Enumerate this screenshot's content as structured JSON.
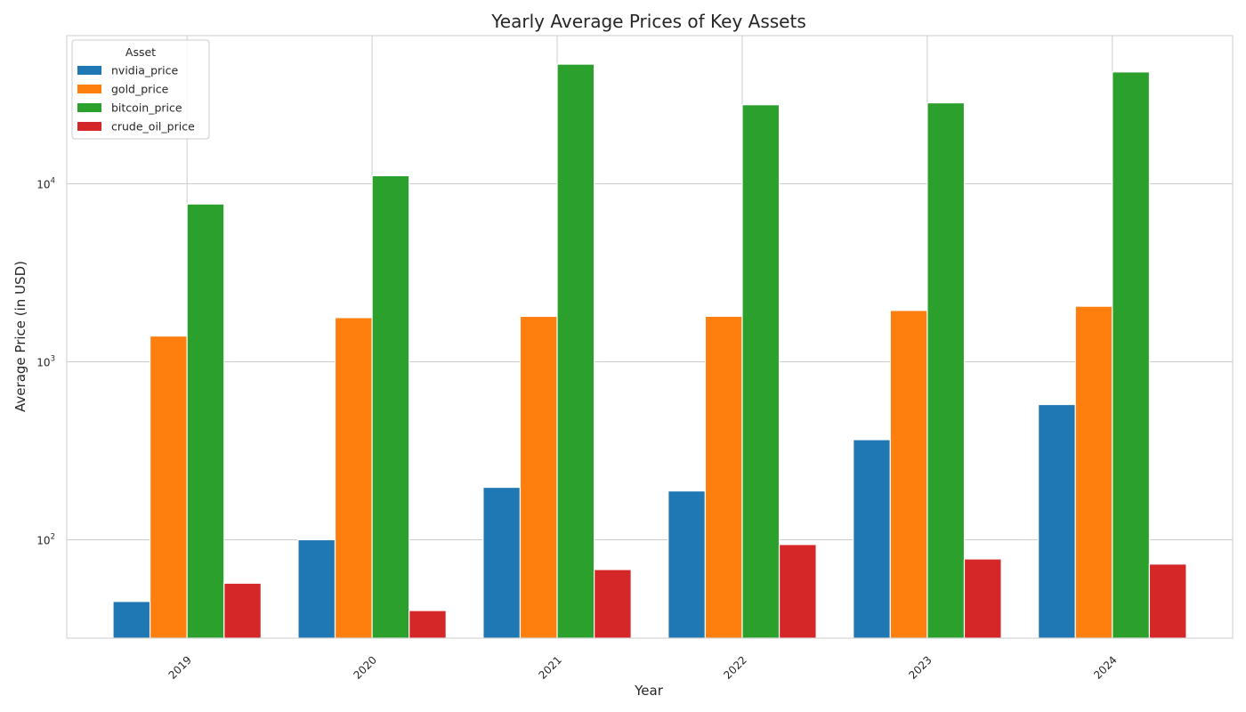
{
  "chart_data": {
    "type": "bar",
    "title": "Yearly Average Prices of Key Assets",
    "xlabel": "Year",
    "ylabel": "Average Price (in USD)",
    "yscale": "log",
    "ylim": [
      28,
      68000
    ],
    "grid": true,
    "legend": {
      "title": "Asset",
      "position": "top-left"
    },
    "categories": [
      "2019",
      "2020",
      "2021",
      "2022",
      "2023",
      "2024"
    ],
    "series": [
      {
        "name": "nvidia_price",
        "color": "#1f77b4",
        "values": [
          45,
          100,
          197,
          188,
          365,
          575
        ]
      },
      {
        "name": "gold_price",
        "color": "#ff7f0e",
        "values": [
          1395,
          1770,
          1799,
          1801,
          1942,
          2050
        ]
      },
      {
        "name": "bitcoin_price",
        "color": "#2ca02c",
        "values": [
          7700,
          11100,
          47000,
          27800,
          28500,
          42500
        ]
      },
      {
        "name": "crude_oil_price",
        "color": "#d62728",
        "values": [
          57,
          40,
          68,
          94,
          78,
          73
        ]
      }
    ],
    "y_ticks": [
      {
        "base": "10",
        "exp": "2",
        "value": 100
      },
      {
        "base": "10",
        "exp": "3",
        "value": 1000
      },
      {
        "base": "10",
        "exp": "4",
        "value": 10000
      }
    ]
  }
}
